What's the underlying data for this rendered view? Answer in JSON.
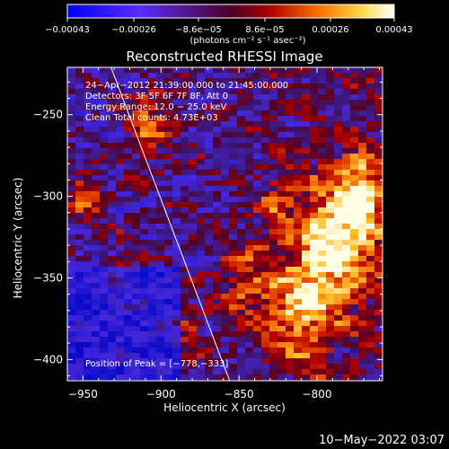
{
  "chart_data": {
    "type": "heatmap",
    "title": "Reconstructed RHESSI Image",
    "xlabel": "Heliocentric X (arcsec)",
    "ylabel": "Heliocentric Y (arcsec)",
    "xlim": [
      -960,
      -758
    ],
    "ylim": [
      -413,
      -221
    ],
    "xticks": [
      -950,
      -900,
      -850,
      -800
    ],
    "xtick_labels": [
      "−950",
      "−900",
      "−850",
      "−800"
    ],
    "yticks": [
      -250,
      -300,
      -350,
      -400
    ],
    "ytick_labels": [
      "−250",
      "−300",
      "−350",
      "−400"
    ],
    "colorbar": {
      "range": [
        -0.00043,
        0.00043
      ],
      "tick_labels": [
        "−0.00043",
        "−0.00026",
        "−8.6e−05",
        "8.6e−05",
        "0.00026",
        "0.00043"
      ],
      "unit": "(photons cm⁻² s⁻¹ asec⁻²)"
    },
    "info_lines": [
      "24−Apr−2012 21:39:00.000 to 21:45:00.000",
      "Detectors: 3F 5F 6F 7F 8F, Att 0",
      "Energy Range: 12.0 − 25.0 keV",
      "Clean    Total counts: 4.73E+03"
    ],
    "peak_label": "Position of Peak = [−778,−333]",
    "limb_line": [
      [
        -932,
        -221
      ],
      [
        -856,
        -413
      ]
    ]
  },
  "footer": {
    "date": "10−May−2022 03:07"
  }
}
